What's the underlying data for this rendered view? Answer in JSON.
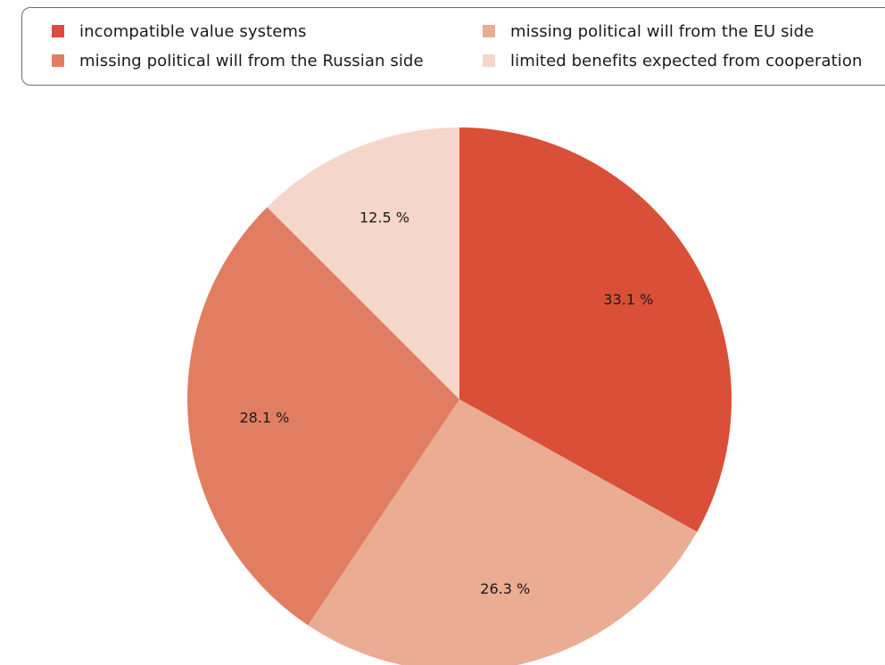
{
  "chart_data": {
    "type": "pie",
    "categories": [
      "incompatible value systems",
      "missing political will from the EU side",
      "missing political will from the Russian side",
      "limited benefits expected from cooperation"
    ],
    "values": [
      33.1,
      26.3,
      28.1,
      12.5
    ],
    "value_labels": [
      "33.1 %",
      "26.3 %",
      "28.1 %",
      "12.5 %"
    ],
    "colors": [
      "#d94f37",
      "#eaac93",
      "#e17e62",
      "#f6d6ca"
    ],
    "legend_position": "top",
    "start_angle": "12 o'clock",
    "direction": "clockwise"
  }
}
